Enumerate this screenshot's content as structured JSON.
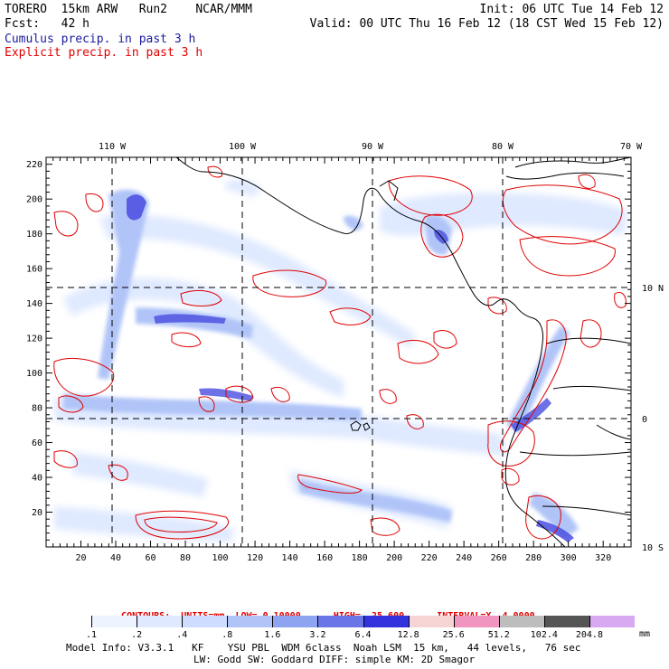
{
  "header": {
    "left_line1": "TORERO  15km ARW   Run2    NCAR/MMM",
    "left_line2": "Fcst:   42 h",
    "right_line1": "Init: 06 UTC Tue 14 Feb 12",
    "right_line2": "Valid: 00 UTC Thu 16 Feb 12 (18 CST Wed 15 Feb 12)",
    "legend_cumulus": "Cumulus precip. in past 3 h",
    "legend_explicit": "Explicit precip. in past 3 h",
    "legend_cumulus_color": "#1a1aa0",
    "legend_explicit_color": "#e00000"
  },
  "map": {
    "top_lon_labels": [
      "110 W",
      "100 W",
      "90 W",
      "80 W",
      "70 W"
    ],
    "right_lat_labels": [
      "10 N",
      "0",
      "10 S"
    ],
    "left_ticks": [
      "220",
      "200",
      "180",
      "160",
      "140",
      "120",
      "100",
      "80",
      "60",
      "40",
      "20"
    ],
    "bottom_ticks": [
      "20",
      "40",
      "60",
      "80",
      "100",
      "120",
      "140",
      "160",
      "180",
      "200",
      "220",
      "240",
      "260",
      "280",
      "300",
      "320"
    ],
    "grid_i_range": [
      0,
      336
    ],
    "grid_j_range": [
      0,
      224
    ]
  },
  "contours": {
    "line": "CONTOURS:  UNITS=mm  LOW= 0.10000      HIGH=  25.600      INTERVAL=X  4.0000",
    "color": "#e00000"
  },
  "colorbar": {
    "labels": [
      ".1",
      ".2",
      ".4",
      ".8",
      "1.6",
      "3.2",
      "6.4",
      "12.8",
      "25.6",
      "51.2",
      "102.4",
      "204.8"
    ],
    "colors": [
      "#ffffff",
      "#eef4ff",
      "#dfe9ff",
      "#cddcff",
      "#b0c4f8",
      "#8ea4f0",
      "#6a76e6",
      "#3232dc",
      "#f6d4d4",
      "#f094c0",
      "#bdbdbd",
      "#555555",
      "#d8a8f0"
    ],
    "unit": "mm"
  },
  "model_info": {
    "line1": "Model Info: V3.3.1   KF    YSU PBL  WDM 6class  Noah LSM  15 km,   44 levels,   76 sec",
    "line2": "LW: Godd SW: Goddard DIFF: simple KM: 2D Smagor"
  }
}
